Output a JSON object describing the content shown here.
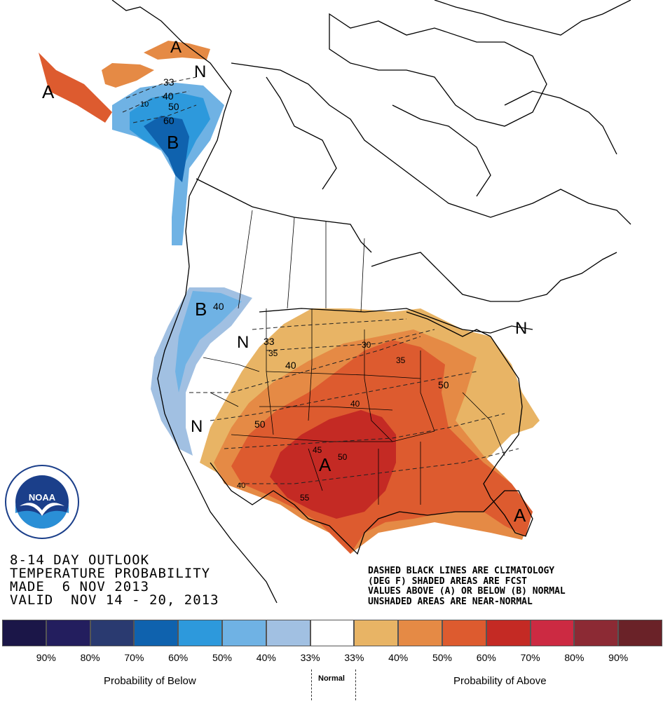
{
  "title_lines": [
    "8-14 DAY OUTLOOK",
    "TEMPERATURE PROBABILITY",
    "MADE  6 NOV 2013",
    "VALID  NOV 14 - 20, 2013"
  ],
  "note_lines": [
    "DASHED BLACK LINES ARE CLIMATOLOGY",
    "(DEG F) SHADED AREAS ARE FCST",
    "VALUES ABOVE (A) OR BELOW (B) NORMAL",
    "UNSHADED AREAS ARE NEAR-NORMAL"
  ],
  "legend": {
    "colors": [
      "#1b1648",
      "#231e5e",
      "#2a3a70",
      "#0f62ae",
      "#2d99dc",
      "#6fb2e4",
      "#a1c0e2",
      "#ffffff",
      "#e8b465",
      "#e58a45",
      "#dd5b2f",
      "#c42a24",
      "#cc2a42",
      "#8c2a34",
      "#6a2228"
    ],
    "labels": [
      "90%",
      "80%",
      "70%",
      "60%",
      "50%",
      "40%",
      "33%",
      "33%",
      "40%",
      "50%",
      "60%",
      "70%",
      "80%",
      "90%"
    ],
    "below_label": "Probability of Below",
    "normal_label": "Normal",
    "above_label": "Probability of Above"
  },
  "map_labels": {
    "above_marks": [
      "A",
      "A",
      "A",
      "A"
    ],
    "below_marks": [
      "B",
      "B"
    ],
    "normal_marks": [
      "N",
      "N",
      "N",
      "N"
    ],
    "contour_values": [
      "33",
      "40",
      "10",
      "50",
      "60",
      "40",
      "33",
      "35",
      "40",
      "30",
      "35",
      "50",
      "40",
      "50",
      "45",
      "50",
      "55",
      "40",
      "60"
    ]
  },
  "logo_text": "NOAA"
}
